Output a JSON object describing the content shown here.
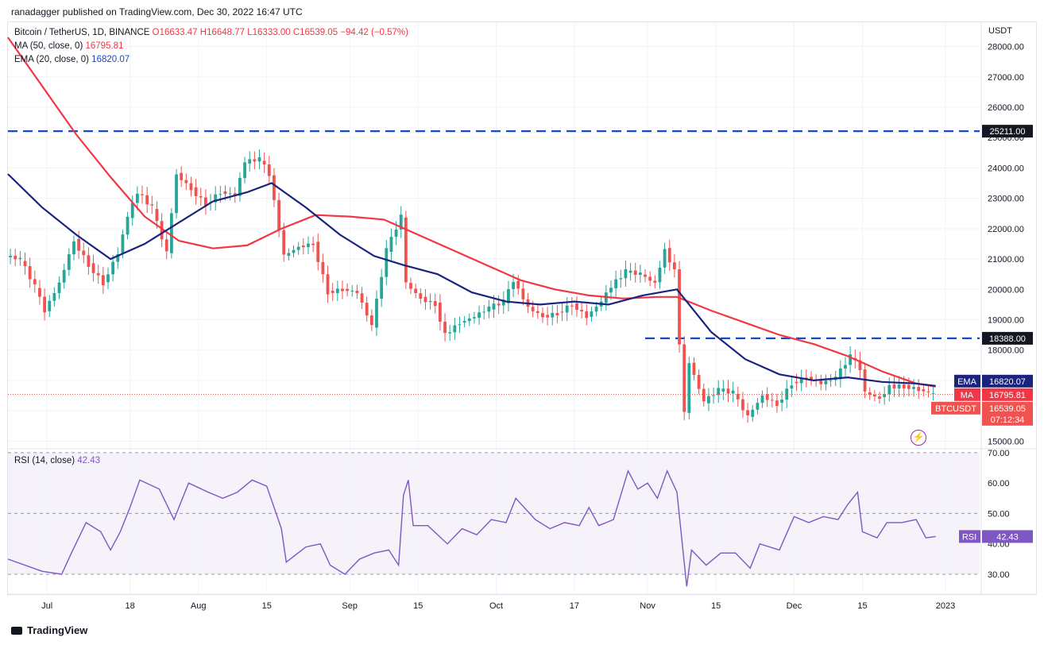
{
  "header": {
    "publisher": "ranadagger published on TradingView.com, Dec 30, 2022 16:47 UTC"
  },
  "legend": {
    "symbol": "Bitcoin / TetherUS, 1D, BINANCE",
    "open": "O16633.47",
    "high": "H16648.77",
    "low": "L16333.00",
    "close": "C16539.05",
    "change": "−94.42 (−0.57%)",
    "ma_label": "MA (50, close, 0)",
    "ma_value": "16795.81",
    "ema_label": "EMA (20, close, 0)",
    "ema_value": "16820.07",
    "rsi_label": "RSI (14, close)",
    "rsi_value": "42.43"
  },
  "footer": {
    "brand": "TradingView"
  },
  "colors": {
    "up": "#26a69a",
    "down": "#ef5350",
    "ma": "#f23645",
    "ema": "#1848cc",
    "rsi": "#7e57c2",
    "level": "#1848cc",
    "label_dark": "#131722"
  },
  "icons": {
    "alert": "lightning-icon",
    "logo": "tradingview-logo-icon"
  },
  "chart_data": [
    {
      "type": "candlestick",
      "title": "Bitcoin / TetherUS, 1D, BINANCE",
      "y_unit": "USDT",
      "ylim": [
        14800,
        28800
      ],
      "y_ticks": [
        "15000.00",
        "16000.00",
        "17000.00",
        "18000.00",
        "19000.00",
        "20000.00",
        "21000.00",
        "22000.00",
        "23000.00",
        "24000.00",
        "25000.00",
        "26000.00",
        "27000.00",
        "28000.00"
      ],
      "x_ticks": [
        "Jul",
        "18",
        "Aug",
        "15",
        "Sep",
        "15",
        "Oct",
        "17",
        "Nov",
        "15",
        "Dec",
        "15",
        "2023"
      ],
      "x_tick_dates": [
        "2022-07-01",
        "2022-07-18",
        "2022-08-01",
        "2022-08-15",
        "2022-09-01",
        "2022-09-15",
        "2022-10-01",
        "2022-10-17",
        "2022-11-01",
        "2022-11-15",
        "2022-12-01",
        "2022-12-15",
        "2023-01-01"
      ],
      "x_range": [
        "2022-06-23",
        "2023-01-08"
      ],
      "horizontal_levels": [
        {
          "value": 25211.0,
          "label": "25211.00"
        },
        {
          "value": 18388.0,
          "label": "18388.00"
        }
      ],
      "price_labels": [
        {
          "name": "EMA",
          "value": "16820.07"
        },
        {
          "name": "MA",
          "value": "16795.81"
        },
        {
          "name": "BTCUSDT",
          "value": "16539.05",
          "countdown": "07:12:34"
        }
      ],
      "close": [
        {
          "date": "2022-06-23",
          "value": 21100
        },
        {
          "date": "2022-06-26",
          "value": 21000
        },
        {
          "date": "2022-06-29",
          "value": 20100
        },
        {
          "date": "2022-07-01",
          "value": 19300
        },
        {
          "date": "2022-07-04",
          "value": 20200
        },
        {
          "date": "2022-07-07",
          "value": 21600
        },
        {
          "date": "2022-07-10",
          "value": 20800
        },
        {
          "date": "2022-07-13",
          "value": 20200
        },
        {
          "date": "2022-07-16",
          "value": 21200
        },
        {
          "date": "2022-07-18",
          "value": 22400
        },
        {
          "date": "2022-07-20",
          "value": 23200
        },
        {
          "date": "2022-07-23",
          "value": 22700
        },
        {
          "date": "2022-07-26",
          "value": 21200
        },
        {
          "date": "2022-07-28",
          "value": 23800
        },
        {
          "date": "2022-07-31",
          "value": 23300
        },
        {
          "date": "2022-08-03",
          "value": 22800
        },
        {
          "date": "2022-08-06",
          "value": 23200
        },
        {
          "date": "2022-08-09",
          "value": 23100
        },
        {
          "date": "2022-08-11",
          "value": 24200
        },
        {
          "date": "2022-08-14",
          "value": 24300
        },
        {
          "date": "2022-08-16",
          "value": 23800
        },
        {
          "date": "2022-08-19",
          "value": 21100
        },
        {
          "date": "2022-08-22",
          "value": 21400
        },
        {
          "date": "2022-08-25",
          "value": 21500
        },
        {
          "date": "2022-08-28",
          "value": 19900
        },
        {
          "date": "2022-08-31",
          "value": 20000
        },
        {
          "date": "2022-09-03",
          "value": 19900
        },
        {
          "date": "2022-09-06",
          "value": 18800
        },
        {
          "date": "2022-09-09",
          "value": 21300
        },
        {
          "date": "2022-09-12",
          "value": 22400
        },
        {
          "date": "2022-09-13",
          "value": 20200
        },
        {
          "date": "2022-09-16",
          "value": 19700
        },
        {
          "date": "2022-09-19",
          "value": 19500
        },
        {
          "date": "2022-09-21",
          "value": 18500
        },
        {
          "date": "2022-09-24",
          "value": 18900
        },
        {
          "date": "2022-09-27",
          "value": 19100
        },
        {
          "date": "2022-09-30",
          "value": 19400
        },
        {
          "date": "2022-10-03",
          "value": 19600
        },
        {
          "date": "2022-10-05",
          "value": 20300
        },
        {
          "date": "2022-10-08",
          "value": 19400
        },
        {
          "date": "2022-10-11",
          "value": 19100
        },
        {
          "date": "2022-10-14",
          "value": 19200
        },
        {
          "date": "2022-10-17",
          "value": 19500
        },
        {
          "date": "2022-10-20",
          "value": 19100
        },
        {
          "date": "2022-10-23",
          "value": 19600
        },
        {
          "date": "2022-10-25",
          "value": 20100
        },
        {
          "date": "2022-10-28",
          "value": 20600
        },
        {
          "date": "2022-10-31",
          "value": 20500
        },
        {
          "date": "2022-11-03",
          "value": 20200
        },
        {
          "date": "2022-11-05",
          "value": 21300
        },
        {
          "date": "2022-11-07",
          "value": 20600
        },
        {
          "date": "2022-11-09",
          "value": 15900
        },
        {
          "date": "2022-11-10",
          "value": 17600
        },
        {
          "date": "2022-11-13",
          "value": 16300
        },
        {
          "date": "2022-11-16",
          "value": 16700
        },
        {
          "date": "2022-11-19",
          "value": 16600
        },
        {
          "date": "2022-11-22",
          "value": 15800
        },
        {
          "date": "2022-11-25",
          "value": 16500
        },
        {
          "date": "2022-11-28",
          "value": 16200
        },
        {
          "date": "2022-12-01",
          "value": 16900
        },
        {
          "date": "2022-12-04",
          "value": 17100
        },
        {
          "date": "2022-12-07",
          "value": 16900
        },
        {
          "date": "2022-12-10",
          "value": 17100
        },
        {
          "date": "2022-12-13",
          "value": 17800
        },
        {
          "date": "2022-12-15",
          "value": 17400
        },
        {
          "date": "2022-12-16",
          "value": 16600
        },
        {
          "date": "2022-12-19",
          "value": 16400
        },
        {
          "date": "2022-12-21",
          "value": 16800
        },
        {
          "date": "2022-12-24",
          "value": 16800
        },
        {
          "date": "2022-12-27",
          "value": 16700
        },
        {
          "date": "2022-12-29",
          "value": 16600
        },
        {
          "date": "2022-12-30",
          "value": 16539
        }
      ],
      "ma_50": [
        {
          "date": "2022-06-23",
          "value": 28300
        },
        {
          "date": "2022-06-30",
          "value": 26700
        },
        {
          "date": "2022-07-07",
          "value": 25100
        },
        {
          "date": "2022-07-14",
          "value": 23700
        },
        {
          "date": "2022-07-21",
          "value": 22400
        },
        {
          "date": "2022-07-28",
          "value": 21600
        },
        {
          "date": "2022-08-04",
          "value": 21350
        },
        {
          "date": "2022-08-11",
          "value": 21450
        },
        {
          "date": "2022-08-18",
          "value": 22000
        },
        {
          "date": "2022-08-25",
          "value": 22450
        },
        {
          "date": "2022-09-01",
          "value": 22400
        },
        {
          "date": "2022-09-08",
          "value": 22300
        },
        {
          "date": "2022-09-15",
          "value": 21800
        },
        {
          "date": "2022-09-22",
          "value": 21300
        },
        {
          "date": "2022-09-29",
          "value": 20800
        },
        {
          "date": "2022-10-06",
          "value": 20300
        },
        {
          "date": "2022-10-13",
          "value": 20000
        },
        {
          "date": "2022-10-20",
          "value": 19800
        },
        {
          "date": "2022-10-27",
          "value": 19700
        },
        {
          "date": "2022-11-03",
          "value": 19750
        },
        {
          "date": "2022-11-07",
          "value": 19750
        },
        {
          "date": "2022-11-14",
          "value": 19300
        },
        {
          "date": "2022-11-21",
          "value": 18900
        },
        {
          "date": "2022-11-28",
          "value": 18500
        },
        {
          "date": "2022-12-05",
          "value": 18200
        },
        {
          "date": "2022-12-12",
          "value": 17800
        },
        {
          "date": "2022-12-19",
          "value": 17300
        },
        {
          "date": "2022-12-26",
          "value": 16900
        },
        {
          "date": "2022-12-30",
          "value": 16796
        }
      ],
      "ema_20": [
        {
          "date": "2022-06-23",
          "value": 23800
        },
        {
          "date": "2022-06-30",
          "value": 22700
        },
        {
          "date": "2022-07-07",
          "value": 21800
        },
        {
          "date": "2022-07-14",
          "value": 21000
        },
        {
          "date": "2022-07-21",
          "value": 21500
        },
        {
          "date": "2022-07-28",
          "value": 22200
        },
        {
          "date": "2022-08-04",
          "value": 22900
        },
        {
          "date": "2022-08-11",
          "value": 23200
        },
        {
          "date": "2022-08-16",
          "value": 23500
        },
        {
          "date": "2022-08-23",
          "value": 22700
        },
        {
          "date": "2022-08-30",
          "value": 21800
        },
        {
          "date": "2022-09-06",
          "value": 21100
        },
        {
          "date": "2022-09-12",
          "value": 20800
        },
        {
          "date": "2022-09-19",
          "value": 20500
        },
        {
          "date": "2022-09-26",
          "value": 19900
        },
        {
          "date": "2022-10-03",
          "value": 19600
        },
        {
          "date": "2022-10-10",
          "value": 19500
        },
        {
          "date": "2022-10-17",
          "value": 19600
        },
        {
          "date": "2022-10-24",
          "value": 19500
        },
        {
          "date": "2022-10-31",
          "value": 19800
        },
        {
          "date": "2022-11-07",
          "value": 20000
        },
        {
          "date": "2022-11-14",
          "value": 18600
        },
        {
          "date": "2022-11-21",
          "value": 17700
        },
        {
          "date": "2022-11-28",
          "value": 17200
        },
        {
          "date": "2022-12-05",
          "value": 17000
        },
        {
          "date": "2022-12-12",
          "value": 17100
        },
        {
          "date": "2022-12-19",
          "value": 16950
        },
        {
          "date": "2022-12-26",
          "value": 16900
        },
        {
          "date": "2022-12-30",
          "value": 16820
        }
      ]
    },
    {
      "type": "line",
      "title": "RSI (14, close)",
      "ylim": [
        24,
        71
      ],
      "y_ticks": [
        "30.00",
        "40.00",
        "50.00",
        "60.00",
        "70.00"
      ],
      "bands": {
        "upper": 70,
        "lower": 30
      },
      "value_label": {
        "name": "RSI",
        "value": "42.43"
      },
      "series": [
        {
          "date": "2022-06-23",
          "value": 35
        },
        {
          "date": "2022-06-30",
          "value": 31
        },
        {
          "date": "2022-07-04",
          "value": 30
        },
        {
          "date": "2022-07-06",
          "value": 37
        },
        {
          "date": "2022-07-09",
          "value": 47
        },
        {
          "date": "2022-07-12",
          "value": 44
        },
        {
          "date": "2022-07-14",
          "value": 38
        },
        {
          "date": "2022-07-16",
          "value": 44
        },
        {
          "date": "2022-07-18",
          "value": 52
        },
        {
          "date": "2022-07-20",
          "value": 61
        },
        {
          "date": "2022-07-24",
          "value": 58
        },
        {
          "date": "2022-07-27",
          "value": 48
        },
        {
          "date": "2022-07-30",
          "value": 60
        },
        {
          "date": "2022-08-03",
          "value": 57
        },
        {
          "date": "2022-08-06",
          "value": 55
        },
        {
          "date": "2022-08-09",
          "value": 57
        },
        {
          "date": "2022-08-12",
          "value": 61
        },
        {
          "date": "2022-08-15",
          "value": 59
        },
        {
          "date": "2022-08-18",
          "value": 45
        },
        {
          "date": "2022-08-19",
          "value": 34
        },
        {
          "date": "2022-08-23",
          "value": 39
        },
        {
          "date": "2022-08-26",
          "value": 40
        },
        {
          "date": "2022-08-28",
          "value": 33
        },
        {
          "date": "2022-08-31",
          "value": 30
        },
        {
          "date": "2022-09-03",
          "value": 35
        },
        {
          "date": "2022-09-06",
          "value": 37
        },
        {
          "date": "2022-09-09",
          "value": 38
        },
        {
          "date": "2022-09-11",
          "value": 33
        },
        {
          "date": "2022-09-12",
          "value": 56
        },
        {
          "date": "2022-09-13",
          "value": 61
        },
        {
          "date": "2022-09-14",
          "value": 46
        },
        {
          "date": "2022-09-17",
          "value": 46
        },
        {
          "date": "2022-09-21",
          "value": 40
        },
        {
          "date": "2022-09-24",
          "value": 45
        },
        {
          "date": "2022-09-27",
          "value": 43
        },
        {
          "date": "2022-09-30",
          "value": 48
        },
        {
          "date": "2022-10-03",
          "value": 47
        },
        {
          "date": "2022-10-05",
          "value": 55
        },
        {
          "date": "2022-10-09",
          "value": 48
        },
        {
          "date": "2022-10-12",
          "value": 45
        },
        {
          "date": "2022-10-15",
          "value": 47
        },
        {
          "date": "2022-10-18",
          "value": 46
        },
        {
          "date": "2022-10-20",
          "value": 52
        },
        {
          "date": "2022-10-22",
          "value": 46
        },
        {
          "date": "2022-10-25",
          "value": 48
        },
        {
          "date": "2022-10-28",
          "value": 64
        },
        {
          "date": "2022-10-30",
          "value": 58
        },
        {
          "date": "2022-11-01",
          "value": 60
        },
        {
          "date": "2022-11-03",
          "value": 55
        },
        {
          "date": "2022-11-05",
          "value": 64
        },
        {
          "date": "2022-11-07",
          "value": 57
        },
        {
          "date": "2022-11-09",
          "value": 26
        },
        {
          "date": "2022-11-10",
          "value": 38
        },
        {
          "date": "2022-11-13",
          "value": 33
        },
        {
          "date": "2022-11-16",
          "value": 37
        },
        {
          "date": "2022-11-19",
          "value": 37
        },
        {
          "date": "2022-11-22",
          "value": 32
        },
        {
          "date": "2022-11-24",
          "value": 40
        },
        {
          "date": "2022-11-28",
          "value": 38
        },
        {
          "date": "2022-12-01",
          "value": 49
        },
        {
          "date": "2022-12-04",
          "value": 47
        },
        {
          "date": "2022-12-07",
          "value": 49
        },
        {
          "date": "2022-12-10",
          "value": 48
        },
        {
          "date": "2022-12-12",
          "value": 53
        },
        {
          "date": "2022-12-14",
          "value": 57
        },
        {
          "date": "2022-12-15",
          "value": 44
        },
        {
          "date": "2022-12-18",
          "value": 42
        },
        {
          "date": "2022-12-20",
          "value": 47
        },
        {
          "date": "2022-12-23",
          "value": 47
        },
        {
          "date": "2022-12-26",
          "value": 48
        },
        {
          "date": "2022-12-28",
          "value": 42
        },
        {
          "date": "2022-12-30",
          "value": 42.43
        }
      ]
    }
  ]
}
